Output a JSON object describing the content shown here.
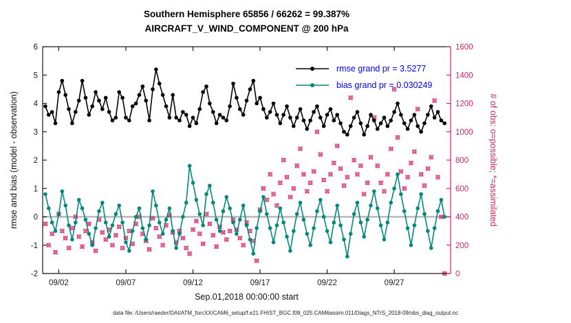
{
  "header": {
    "title_line1": "Southern Hemisphere 65856 / 66262 = 99.387%",
    "title_line2": "AIRCRAFT_V_WIND_COMPONENT @ 200 hPa"
  },
  "footer": {
    "data_file_caption": "data file: /Users/raeder/DAI/ATM_forcXX/CAM6_setup/f.e21.FHIST_BGC.f09_025.CAM6assim.011/Diags_NTrS_2018-09/obs_diag_output.nc"
  },
  "colors": {
    "rmse": "#000000",
    "bias": "#00897b",
    "obs": "#d91e63",
    "legend_text": "#0000ee",
    "axis_text": "#1a1a1a",
    "zero_line": "#b0b0b0"
  },
  "chart_data": {
    "type": "line",
    "title": "Southern Hemisphere 65856 / 66262 = 99.387% — AIRCRAFT_V_WIND_COMPONENT @ 200 hPa",
    "xlabel": "Sep.01,2018 00:00:00 start",
    "ylabel_left": "rmse and bias (model - observation)",
    "ylabel_right": "# of obs: o=possible; *=assimilated",
    "legend_position": "upper right inside",
    "grid": false,
    "xlim": [
      0.8,
      31.2
    ],
    "ylim_left": [
      -2,
      6
    ],
    "ylim_right": [
      0,
      1600
    ],
    "xticks": {
      "values": [
        2,
        7,
        12,
        17,
        22,
        27
      ],
      "labels": [
        "09/02",
        "09/07",
        "09/12",
        "09/17",
        "09/22",
        "09/27"
      ]
    },
    "yticks_left": [
      -2,
      -1,
      0,
      1,
      2,
      3,
      4,
      5,
      6
    ],
    "yticks_right": [
      0,
      200,
      400,
      600,
      800,
      1000,
      1200,
      1400,
      1600
    ],
    "x_start": 1.0,
    "x_step": 0.25,
    "series": [
      {
        "name": "rmse grand pr = 3.5277",
        "axis": "left",
        "color": "#000000",
        "marker": "circle",
        "values": [
          3.9,
          3.6,
          3.7,
          3.3,
          4.4,
          4.8,
          4.3,
          3.8,
          3.3,
          3.7,
          4.1,
          4.8,
          4.2,
          3.6,
          3.9,
          4.4,
          4.1,
          3.8,
          4.2,
          3.7,
          3.4,
          3.5,
          4.4,
          4.2,
          3.5,
          3.4,
          3.9,
          4.0,
          4.3,
          4.6,
          4.1,
          3.4,
          4.5,
          5.2,
          4.7,
          4.3,
          3.9,
          3.5,
          4.3,
          3.5,
          3.4,
          3.7,
          3.6,
          3.2,
          3.5,
          3.3,
          3.8,
          4.4,
          4.6,
          4.0,
          3.7,
          3.3,
          3.6,
          3.5,
          3.4,
          3.9,
          4.7,
          4.2,
          3.8,
          3.6,
          4.1,
          4.5,
          4.8,
          4.0,
          4.2,
          3.8,
          3.5,
          3.7,
          4.0,
          3.6,
          3.3,
          3.6,
          3.9,
          3.5,
          3.2,
          3.5,
          3.8,
          3.4,
          3.1,
          3.4,
          3.7,
          3.9,
          3.5,
          3.2,
          3.6,
          3.8,
          3.4,
          3.6,
          3.3,
          3.0,
          2.9,
          3.2,
          3.5,
          3.7,
          3.3,
          2.9,
          3.2,
          3.6,
          3.4,
          3.1,
          3.3,
          3.5,
          3.2,
          3.4,
          3.7,
          4.0,
          3.6,
          3.3,
          3.1,
          3.4,
          3.6,
          3.2,
          3.0,
          3.3,
          3.6,
          3.9,
          3.5,
          3.7,
          3.4,
          3.3
        ]
      },
      {
        "name": "bias grand pr = 0.030249",
        "axis": "left",
        "color": "#00897b",
        "marker": "circle",
        "values": [
          0.8,
          0.3,
          -0.2,
          -0.5,
          0.1,
          0.9,
          0.4,
          -0.3,
          -0.8,
          -0.2,
          0.6,
          0.3,
          -0.1,
          -0.6,
          -1.0,
          -0.4,
          0.2,
          0.5,
          -0.2,
          -0.7,
          -0.3,
          0.1,
          0.4,
          -0.2,
          -0.9,
          -1.2,
          -0.5,
          0.0,
          0.3,
          -0.4,
          -0.8,
          -0.3,
          0.9,
          0.4,
          -0.2,
          -0.6,
          -0.1,
          0.3,
          -0.5,
          -1.1,
          -0.6,
          0.0,
          0.5,
          1.8,
          1.2,
          0.6,
          0.1,
          -0.3,
          0.8,
          1.1,
          0.5,
          -0.1,
          -0.5,
          0.2,
          0.7,
          0.3,
          -0.2,
          -0.6,
          -0.1,
          0.4,
          -0.3,
          -0.8,
          -1.3,
          -0.4,
          0.2,
          0.7,
          0.1,
          -0.4,
          -0.9,
          -0.3,
          0.3,
          -0.2,
          -0.7,
          -1.2,
          -0.5,
          0.1,
          0.5,
          -0.1,
          -0.6,
          -1.0,
          -0.4,
          0.2,
          0.6,
          0.0,
          -0.5,
          -0.9,
          -0.2,
          0.4,
          -0.3,
          -0.8,
          -1.4,
          -0.6,
          0.1,
          0.5,
          -0.2,
          -0.7,
          -0.1,
          0.4,
          0.9,
          0.3,
          -0.3,
          -0.8,
          -0.2,
          0.5,
          1.0,
          1.5,
          0.8,
          0.2,
          -0.4,
          -1.0,
          -0.3,
          0.3,
          0.8,
          0.1,
          -0.5,
          -1.1,
          -0.4,
          0.2,
          0.6,
          0.0
        ]
      },
      {
        "name": "# of obs (o=possible, *=assimilated)",
        "axis": "right",
        "color": "#d91e63",
        "marker": "circle-cross",
        "values": [
          350,
          200,
          280,
          150,
          420,
          300,
          250,
          180,
          320,
          400,
          260,
          190,
          300,
          350,
          220,
          160,
          380,
          290,
          240,
          310,
          200,
          270,
          330,
          180,
          250,
          300,
          210,
          350,
          400,
          280,
          230,
          170,
          390,
          320,
          260,
          200,
          340,
          410,
          290,
          220,
          300,
          250,
          180,
          140,
          310,
          370,
          280,
          210,
          420,
          350,
          270,
          190,
          330,
          290,
          240,
          300,
          380,
          310,
          250,
          200,
          360,
          300,
          230,
          90,
          450,
          600,
          520,
          700,
          560,
          480,
          640,
          800,
          680,
          540,
          600,
          760,
          880,
          700,
          580,
          640,
          720,
          1000,
          840,
          660,
          580,
          700,
          780,
          900,
          740,
          620,
          680,
          1240,
          800,
          700,
          760,
          560,
          640,
          820,
          1100,
          760,
          640,
          580,
          700,
          880,
          1300,
          960,
          720,
          600,
          680,
          780,
          860,
          1160,
          700,
          620,
          740,
          820,
          1220,
          680,
          400,
          0
        ]
      }
    ]
  }
}
